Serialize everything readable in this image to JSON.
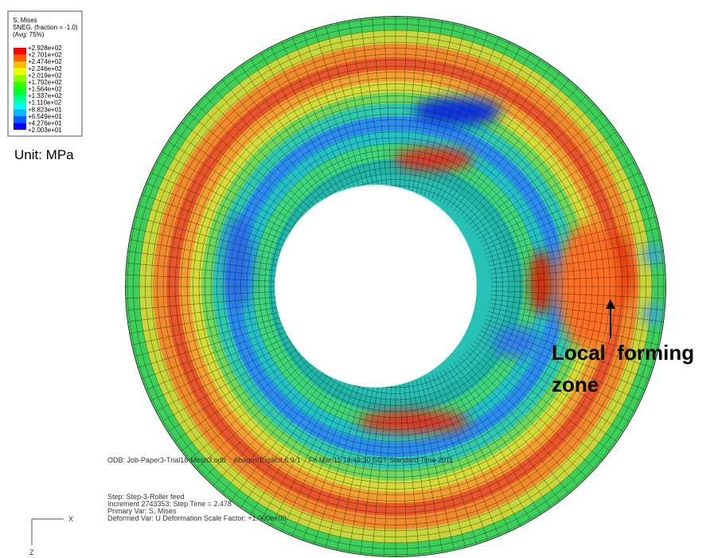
{
  "legend": {
    "title_lines": [
      "S, Mises",
      "SNEG, (fraction = -1.0)",
      "(Avg: 75%)"
    ],
    "values": [
      "+2.928e+02",
      "+2.701e+02",
      "+2.474e+02",
      "+2.246e+02",
      "+2.019e+02",
      "+1.792e+02",
      "+1.564e+02",
      "+1.337e+02",
      "+1.110e+02",
      "+8.823e+01",
      "+6.549e+01",
      "+4.276e+01",
      "+2.003e+01"
    ],
    "colors": [
      "#ff0000",
      "#ff5d00",
      "#ffb900",
      "#e8ff00",
      "#8bff00",
      "#2eff00",
      "#00ff2e",
      "#00ff8b",
      "#00ffe8",
      "#00b9ff",
      "#005dff",
      "#0000ff"
    ]
  },
  "unit": "Unit: MPa",
  "annotation": [
    "Local  forming",
    "zone"
  ],
  "info": {
    "odb": "ODB: Job-Paper3-Trial18-Mesh3.odb    Abaqus/Explicit 6.9-1    Fri Mar 11 14:43:30 SGT Standard Time 2011",
    "lines": [
      "Step: Step-3-Roller feed",
      "Increment  2743353: Step Time =    2.478",
      "Primary Var: S, Mises",
      "Deformed Var: U   Deformation Scale Factor: +1.000e+00"
    ]
  },
  "triad": {
    "x": "X",
    "z": "Z"
  }
}
